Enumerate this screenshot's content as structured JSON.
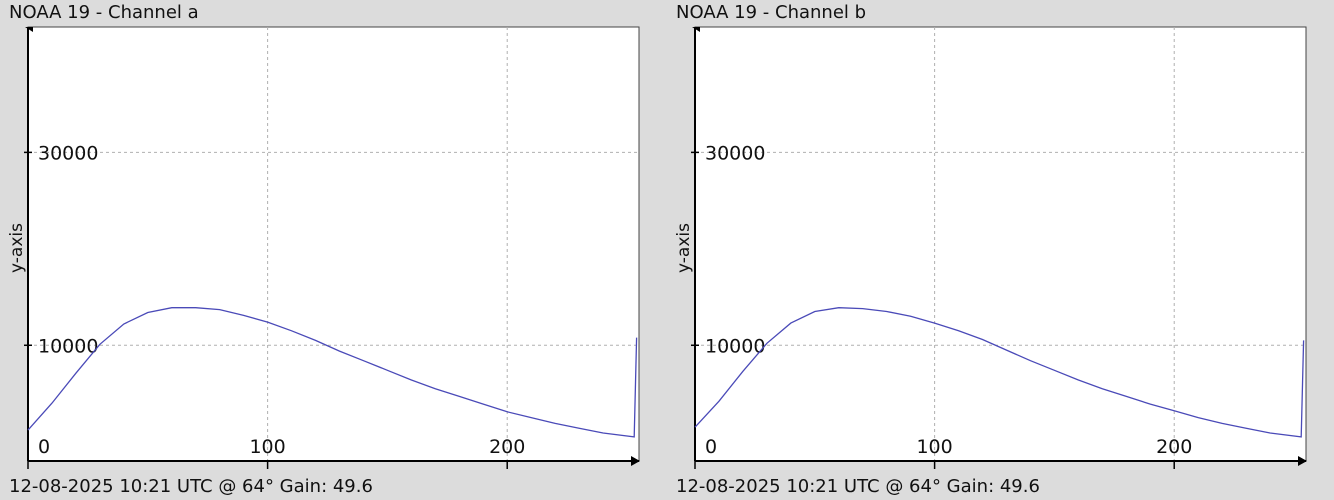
{
  "colors": {
    "background": "#dcdcdc",
    "plot_bg": "#ffffff",
    "line": "#4a4ab8",
    "grid": "#b0b0b0",
    "axis": "#000000"
  },
  "chart_data": [
    {
      "type": "line",
      "title": "NOAA 19 - Channel a",
      "footer": "12-08-2025 10:21 UTC @ 64° Gain: 49.6",
      "xlabel": "",
      "ylabel": "y-axis",
      "xlim": [
        0,
        255
      ],
      "ylim": [
        -2000,
        43000
      ],
      "x_ticks": [
        0,
        100,
        200
      ],
      "y_ticks": [
        10000,
        30000
      ],
      "grid": true,
      "series": [
        {
          "x": [
            0,
            10,
            20,
            30,
            40,
            50,
            60,
            70,
            80,
            90,
            100,
            110,
            120,
            130,
            140,
            150,
            160,
            170,
            180,
            190,
            200,
            210,
            220,
            230,
            240,
            253,
            254
          ],
          "values": [
            1200,
            4000,
            7100,
            10100,
            12200,
            13400,
            13900,
            13900,
            13700,
            13100,
            12400,
            11500,
            10500,
            9400,
            8400,
            7400,
            6400,
            5500,
            4700,
            3900,
            3100,
            2500,
            1900,
            1400,
            900,
            500,
            10800
          ]
        }
      ]
    },
    {
      "type": "line",
      "title": "NOAA 19 - Channel b",
      "footer": "12-08-2025 10:21 UTC @ 64° Gain: 49.6",
      "xlabel": "",
      "ylabel": "y-axis",
      "xlim": [
        0,
        255
      ],
      "ylim": [
        -2000,
        43000
      ],
      "x_ticks": [
        0,
        100,
        200
      ],
      "y_ticks": [
        10000,
        30000
      ],
      "grid": true,
      "series": [
        {
          "x": [
            0,
            10,
            20,
            30,
            40,
            50,
            60,
            70,
            80,
            90,
            100,
            110,
            120,
            130,
            140,
            150,
            160,
            170,
            180,
            190,
            200,
            210,
            220,
            230,
            240,
            253,
            254
          ],
          "values": [
            1500,
            4200,
            7300,
            10200,
            12300,
            13500,
            13900,
            13800,
            13500,
            13000,
            12300,
            11500,
            10600,
            9500,
            8400,
            7400,
            6400,
            5500,
            4700,
            3900,
            3200,
            2500,
            1900,
            1400,
            900,
            500,
            10500
          ]
        }
      ]
    }
  ]
}
